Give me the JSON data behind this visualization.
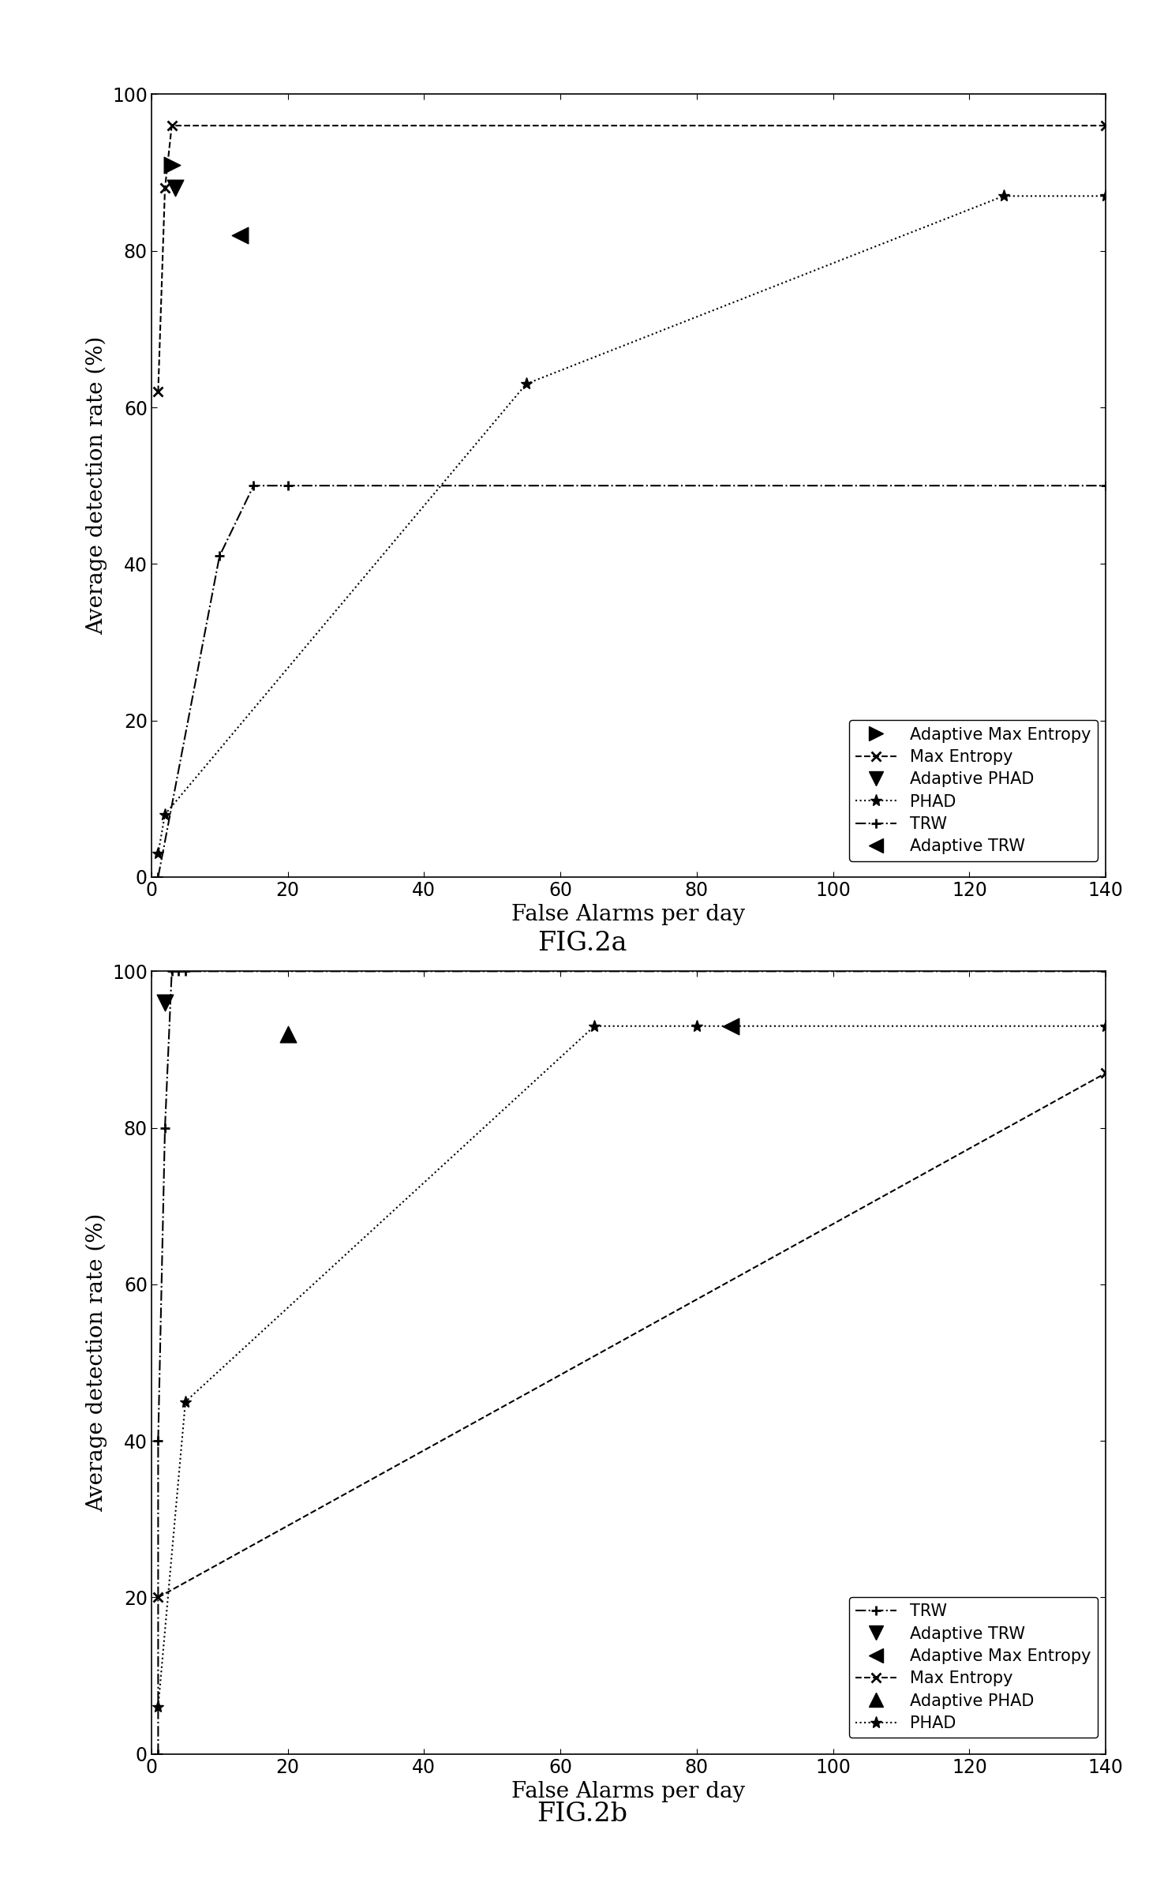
{
  "fig2a": {
    "max_entropy": {
      "x": [
        1,
        2,
        3,
        140
      ],
      "y": [
        62,
        88,
        96,
        96
      ]
    },
    "phad": {
      "x": [
        1,
        2,
        55,
        125,
        140
      ],
      "y": [
        3,
        8,
        63,
        87,
        87
      ]
    },
    "trw": {
      "x": [
        1,
        10,
        15,
        20,
        140
      ],
      "y": [
        0,
        41,
        50,
        50,
        50
      ]
    },
    "adaptive_max_entropy": {
      "x": [
        3
      ],
      "y": [
        91
      ]
    },
    "adaptive_phad": {
      "x": [
        3.5
      ],
      "y": [
        88
      ]
    },
    "adaptive_trw": {
      "x": [
        13
      ],
      "y": [
        82
      ]
    },
    "xlim": [
      0,
      140
    ],
    "ylim": [
      0,
      100
    ],
    "xticks": [
      0,
      20,
      40,
      60,
      80,
      100,
      120,
      140
    ],
    "yticks": [
      0,
      20,
      40,
      60,
      80,
      100
    ],
    "xlabel": "False Alarms per day",
    "ylabel": "Average detection rate (%)",
    "caption": "FIG.2a"
  },
  "fig2b": {
    "trw": {
      "x": [
        1,
        1,
        2,
        3,
        4,
        5,
        140
      ],
      "y": [
        0,
        40,
        80,
        100,
        100,
        100,
        100
      ]
    },
    "max_entropy": {
      "x": [
        1,
        140
      ],
      "y": [
        20,
        87
      ]
    },
    "phad": {
      "x": [
        1,
        5,
        65,
        80,
        140
      ],
      "y": [
        6,
        45,
        93,
        93,
        93
      ]
    },
    "adaptive_trw": {
      "x": [
        2
      ],
      "y": [
        96
      ]
    },
    "adaptive_max_entropy": {
      "x": [
        85
      ],
      "y": [
        93
      ]
    },
    "adaptive_phad": {
      "x": [
        20
      ],
      "y": [
        92
      ]
    },
    "xlim": [
      0,
      140
    ],
    "ylim": [
      0,
      100
    ],
    "xticks": [
      0,
      20,
      40,
      60,
      80,
      100,
      120,
      140
    ],
    "yticks": [
      0,
      20,
      40,
      60,
      80,
      100
    ],
    "xlabel": "False Alarms per day",
    "ylabel": "Average detection rate (%)",
    "caption": "FIG.2b"
  },
  "background_color": "#ffffff",
  "line_color": "#000000",
  "marker_size": 9,
  "triangle_size": 220,
  "linewidth": 1.5
}
